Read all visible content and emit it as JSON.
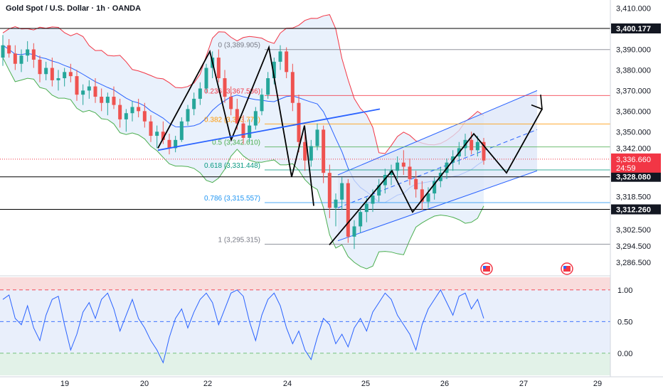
{
  "header": {
    "title": "Gold Spot / U.S. Dollar · 1h · OANDA"
  },
  "colors": {
    "bull": "#26a69a",
    "bear": "#ef5350",
    "bb_upper": "#f23645",
    "bb_lower": "#4caf50",
    "bb_mid": "#2962ff",
    "bb_fill": "#e3eefb",
    "channel": "#2962ff",
    "channel_fill": "#dce6f8",
    "rsi": "#2962ff",
    "rsi_top_band": "#f9dcdc",
    "rsi_mid_band": "#e9effb",
    "rsi_bottom_band": "#e2f2e8",
    "fib_red": "#f23645",
    "fib_orange": "#ff9800",
    "fib_green": "#4caf50",
    "fib_teal": "#089981",
    "fib_blue": "#2196f3",
    "fib_gray": "#787b86",
    "price_label_bg": "#131722",
    "current_price_bg": "#f23645",
    "pattern_line": "#000000",
    "trend_line": "#2962ff"
  },
  "chart_data": {
    "type": "candlestick",
    "title": "Gold Spot / U.S. Dollar · 1h · OANDA",
    "timeframe": "1h",
    "x_ticks": [
      "19",
      "20",
      "22",
      "24",
      "25",
      "26",
      "27",
      "29"
    ],
    "price_axis": {
      "ylim": [
        3281,
        3414
      ],
      "ticks": [
        "3,410.000",
        "3,390.000",
        "3,380.000",
        "3,370.000",
        "3,360.000",
        "3,350.000",
        "3,342.000",
        "3,318.500",
        "3,302.500",
        "3,294.500",
        "3,286.500"
      ],
      "tick_values": [
        3410,
        3390,
        3380,
        3370,
        3360,
        3350,
        3342,
        3318.5,
        3302.5,
        3294.5,
        3286.5
      ]
    },
    "horizontal_levels": [
      {
        "value": 3400.177,
        "label": "3,400.177"
      },
      {
        "value": 3328.08,
        "label": "3,328.080"
      },
      {
        "value": 3312.26,
        "label": "3,312.260"
      }
    ],
    "current_price": {
      "value": 3336.66,
      "label": "3,336.660",
      "countdown": "24:59"
    },
    "fibonacci": [
      {
        "ratio": "0",
        "value": 3389.905,
        "label": "0 (3,389.905)",
        "color": "gray"
      },
      {
        "ratio": "0.236",
        "value": 3367.586,
        "label": "0.236 (3,367.586)",
        "color": "red"
      },
      {
        "ratio": "0.382",
        "value": 3353.772,
        "label": "0.382 (3,353.772)",
        "color": "orange"
      },
      {
        "ratio": "0.5",
        "value": 3342.61,
        "label": "0.5 (3,342.610)",
        "color": "green"
      },
      {
        "ratio": "0.618",
        "value": 3331.448,
        "label": "0.618 (3,331.448)",
        "color": "teal"
      },
      {
        "ratio": "0.786",
        "value": 3315.557,
        "label": "0.786 (3,315.557)",
        "color": "blue"
      },
      {
        "ratio": "1",
        "value": 3295.315,
        "label": "1 (3,295.315)",
        "color": "gray"
      }
    ],
    "candles": [
      [
        3386,
        3397,
        3382,
        3392
      ],
      [
        3392,
        3395,
        3386,
        3388
      ],
      [
        3388,
        3392,
        3380,
        3383
      ],
      [
        3383,
        3390,
        3379,
        3387
      ],
      [
        3387,
        3394,
        3384,
        3390
      ],
      [
        3390,
        3393,
        3381,
        3385
      ],
      [
        3385,
        3387,
        3374,
        3378
      ],
      [
        3378,
        3384,
        3375,
        3381
      ],
      [
        3381,
        3386,
        3372,
        3375
      ],
      [
        3375,
        3380,
        3370,
        3376
      ],
      [
        3376,
        3381,
        3372,
        3379
      ],
      [
        3379,
        3383,
        3374,
        3377
      ],
      [
        3377,
        3380,
        3365,
        3368
      ],
      [
        3368,
        3373,
        3363,
        3370
      ],
      [
        3370,
        3375,
        3366,
        3372
      ],
      [
        3372,
        3376,
        3364,
        3367
      ],
      [
        3367,
        3371,
        3360,
        3364
      ],
      [
        3364,
        3369,
        3358,
        3367
      ],
      [
        3367,
        3372,
        3361,
        3363
      ],
      [
        3363,
        3366,
        3352,
        3356
      ],
      [
        3356,
        3361,
        3350,
        3359
      ],
      [
        3359,
        3365,
        3355,
        3362
      ],
      [
        3362,
        3366,
        3357,
        3360
      ],
      [
        3360,
        3364,
        3352,
        3355
      ],
      [
        3355,
        3358,
        3345,
        3348
      ],
      [
        3348,
        3353,
        3342,
        3350
      ],
      [
        3350,
        3355,
        3344,
        3346
      ],
      [
        3346,
        3349,
        3339,
        3342
      ],
      [
        3342,
        3348,
        3340,
        3346
      ],
      [
        3346,
        3357,
        3345,
        3355
      ],
      [
        3355,
        3363,
        3353,
        3361
      ],
      [
        3361,
        3369,
        3358,
        3366
      ],
      [
        3366,
        3374,
        3363,
        3371
      ],
      [
        3371,
        3383,
        3369,
        3381
      ],
      [
        3381,
        3389,
        3376,
        3386
      ],
      [
        3386,
        3390,
        3374,
        3376
      ],
      [
        3376,
        3380,
        3364,
        3367
      ],
      [
        3367,
        3372,
        3358,
        3361
      ],
      [
        3361,
        3366,
        3351,
        3354
      ],
      [
        3354,
        3358,
        3344,
        3347
      ],
      [
        3347,
        3356,
        3345,
        3353
      ],
      [
        3353,
        3362,
        3351,
        3360
      ],
      [
        3360,
        3371,
        3358,
        3368
      ],
      [
        3368,
        3379,
        3366,
        3376
      ],
      [
        3376,
        3386,
        3373,
        3384
      ],
      [
        3384,
        3392,
        3380,
        3389
      ],
      [
        3389,
        3391,
        3376,
        3379
      ],
      [
        3379,
        3383,
        3360,
        3364
      ],
      [
        3364,
        3368,
        3340,
        3345
      ],
      [
        3345,
        3352,
        3331,
        3336
      ],
      [
        3336,
        3346,
        3333,
        3343
      ],
      [
        3343,
        3354,
        3341,
        3351
      ],
      [
        3351,
        3353,
        3325,
        3330
      ],
      [
        3330,
        3334,
        3308,
        3313
      ],
      [
        3313,
        3320,
        3304,
        3317
      ],
      [
        3317,
        3328,
        3312,
        3325
      ],
      [
        3325,
        3327,
        3296,
        3299
      ],
      [
        3299,
        3307,
        3293,
        3304
      ],
      [
        3304,
        3313,
        3301,
        3311
      ],
      [
        3311,
        3318,
        3306,
        3315
      ],
      [
        3315,
        3322,
        3311,
        3319
      ],
      [
        3319,
        3327,
        3316,
        3324
      ],
      [
        3324,
        3332,
        3320,
        3329
      ],
      [
        3329,
        3334,
        3324,
        3331
      ],
      [
        3331,
        3338,
        3327,
        3335
      ],
      [
        3335,
        3341,
        3329,
        3333
      ],
      [
        3333,
        3337,
        3324,
        3327
      ],
      [
        3327,
        3331,
        3318,
        3322
      ],
      [
        3322,
        3326,
        3312,
        3316
      ],
      [
        3316,
        3323,
        3313,
        3320
      ],
      [
        3320,
        3328,
        3317,
        3326
      ],
      [
        3326,
        3333,
        3323,
        3330
      ],
      [
        3330,
        3337,
        3327,
        3335
      ],
      [
        3335,
        3341,
        3331,
        3338
      ],
      [
        3338,
        3345,
        3334,
        3342
      ],
      [
        3342,
        3349,
        3338,
        3346
      ],
      [
        3346,
        3350,
        3339,
        3341
      ],
      [
        3341,
        3348,
        3338,
        3345
      ],
      [
        3345,
        3347,
        3334,
        3336
      ]
    ],
    "rsi_panel": {
      "ticks": [
        "1.00",
        "0.50",
        "0.00"
      ],
      "tick_values": [
        1.0,
        0.5,
        0.0
      ],
      "ylim": [
        -0.35,
        1.2
      ],
      "values": [
        0.85,
        0.92,
        0.55,
        0.45,
        0.75,
        0.4,
        0.2,
        0.6,
        0.85,
        0.9,
        0.45,
        0.05,
        0.3,
        0.65,
        0.8,
        0.55,
        0.85,
        0.95,
        0.7,
        0.35,
        0.6,
        0.85,
        0.55,
        0.4,
        0.2,
        0.05,
        -0.15,
        0.25,
        0.55,
        0.7,
        0.4,
        0.65,
        0.85,
        0.95,
        0.8,
        0.45,
        0.7,
        0.95,
        1.0,
        0.9,
        0.5,
        0.2,
        0.6,
        0.85,
        0.95,
        0.75,
        0.4,
        0.15,
        0.35,
        0.05,
        -0.1,
        0.25,
        0.55,
        0.45,
        0.15,
        0.3,
        0.1,
        0.4,
        0.55,
        0.35,
        0.65,
        0.8,
        0.95,
        0.85,
        0.6,
        0.45,
        0.3,
        0.05,
        0.45,
        0.7,
        0.85,
        1.0,
        0.8,
        0.6,
        0.9,
        0.95,
        0.7,
        0.85,
        0.55
      ]
    }
  }
}
